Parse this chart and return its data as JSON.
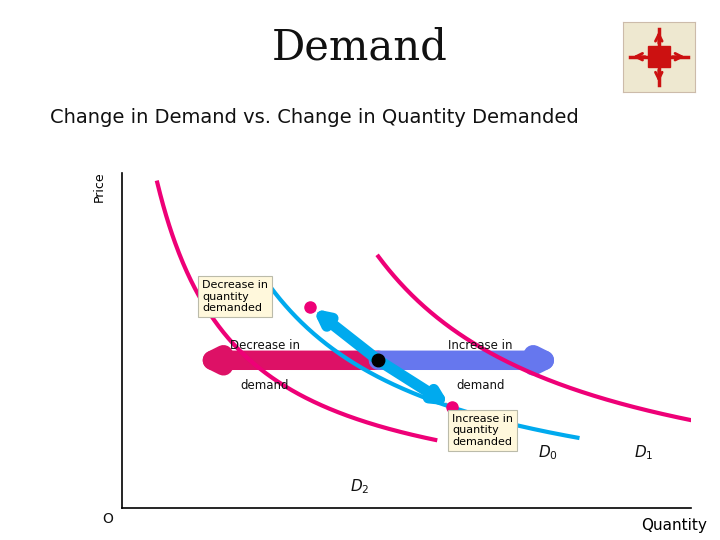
{
  "title": "Demand",
  "subtitle": "Change in Demand vs. Change in Quantity Demanded",
  "title_fontsize": 30,
  "subtitle_fontsize": 14,
  "xlabel": "Quantity",
  "ylabel": "Price",
  "background": "#ffffff",
  "curve_D0_color": "#00AAEE",
  "curve_D1_color": "#EE0077",
  "curve_D2_color": "#EE0077",
  "box_fill": "#FFF8DC",
  "box_edge": "#BBBBAA",
  "arrow_left_color": "#DD1166",
  "arrow_right_color": "#6677EE",
  "dot_center": "#000000",
  "dot_upper": "#EE0077",
  "dot_lower": "#EE0077",
  "label_D0": "D",
  "label_D1": "D",
  "label_D2": "D",
  "label_D0_sub": "0",
  "label_D1_sub": "1",
  "label_D2_sub": "2",
  "text_decrease_qty": "Decrease in\nquantity\ndemanded",
  "text_increase_qty": "Increase in\nquantity\ndemanded",
  "text_decrease_demand": "Decrease in",
  "text_decrease_demand2": "demand",
  "text_increase_demand": "Increase in",
  "text_increase_demand2": "demand"
}
